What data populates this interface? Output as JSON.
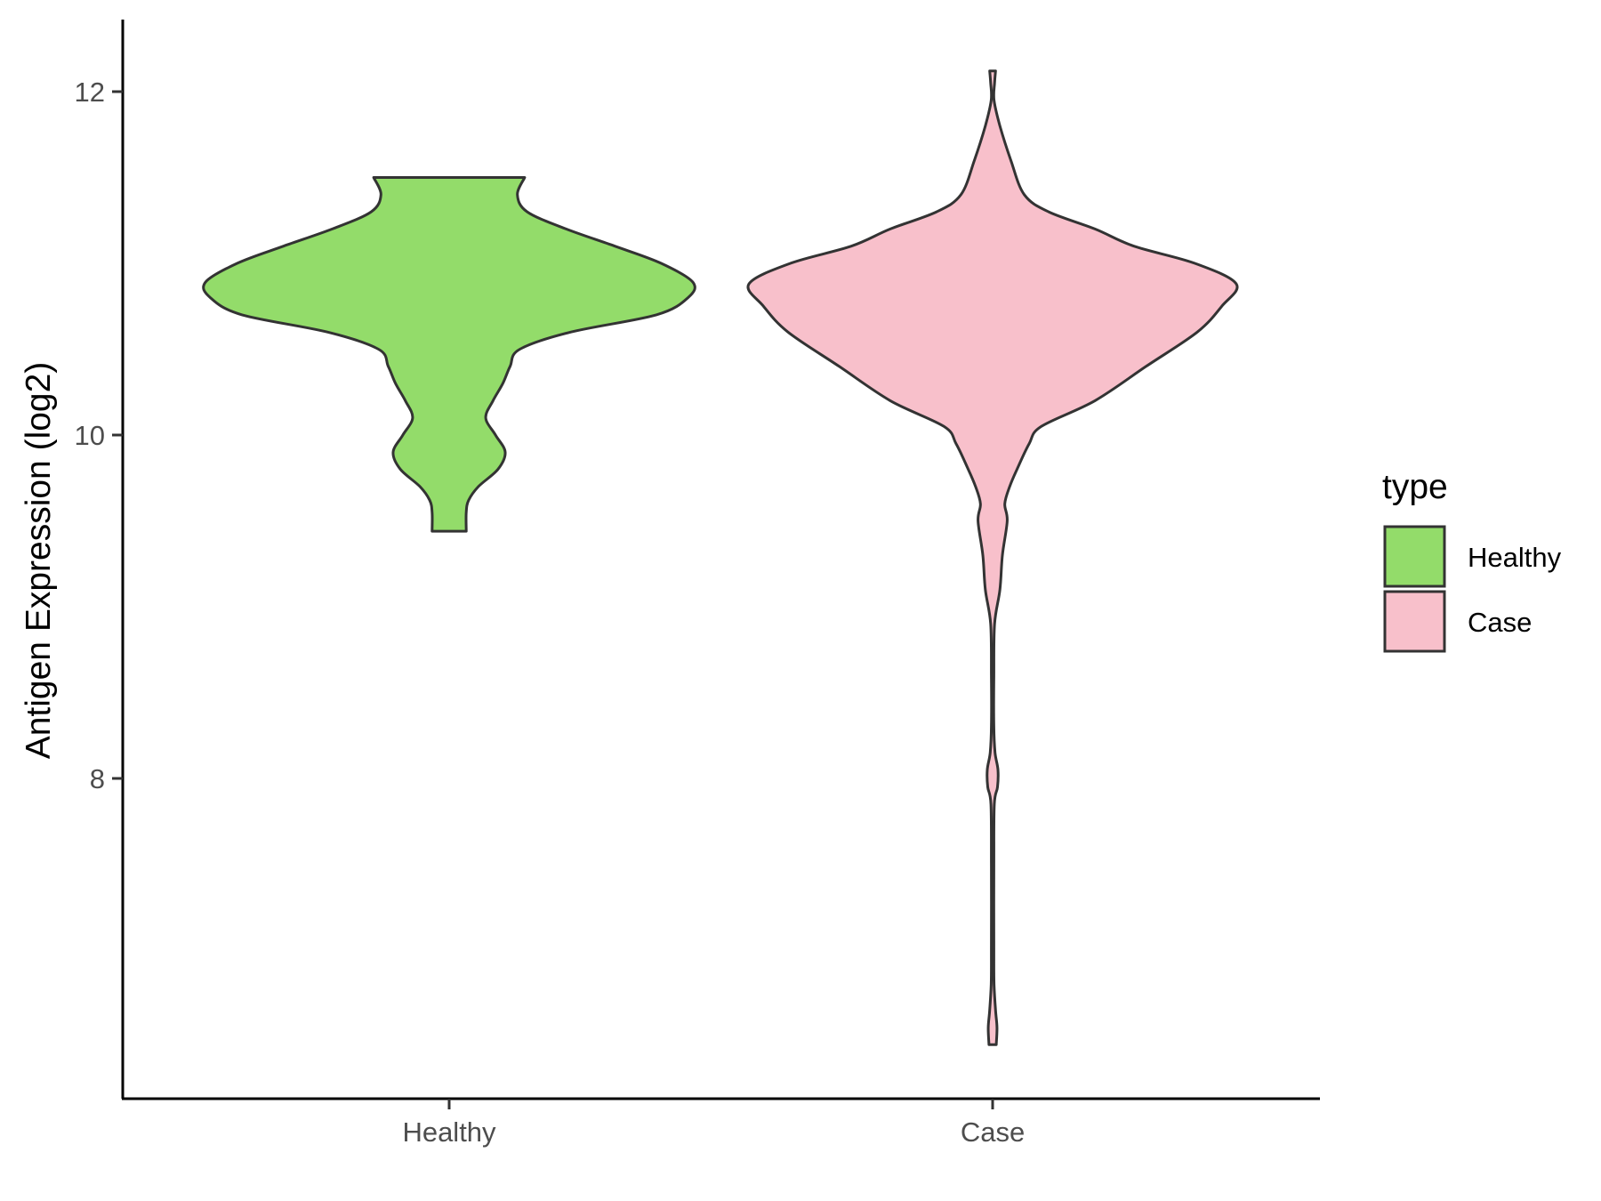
{
  "chart_data": {
    "type": "violin",
    "xlabel": "",
    "ylabel": "Antigen Expression (log2)",
    "categories": [
      "Healthy",
      "Case"
    ],
    "ylim": [
      6.1,
      12.4
    ],
    "yticks": [
      8,
      10,
      12
    ],
    "grid": false,
    "legend": {
      "title": "type",
      "position": "right",
      "entries": [
        {
          "label": "Healthy",
          "color": "#93dc6a"
        },
        {
          "label": "Case",
          "color": "#f8c0cb"
        }
      ]
    },
    "series": [
      {
        "name": "Healthy",
        "color": "#93dc6a",
        "y_min": 9.44,
        "y_max": 11.5,
        "profile": [
          [
            9.44,
            0.07
          ],
          [
            9.55,
            0.07
          ],
          [
            9.62,
            0.08
          ],
          [
            9.7,
            0.12
          ],
          [
            9.8,
            0.2
          ],
          [
            9.9,
            0.23
          ],
          [
            10.0,
            0.19
          ],
          [
            10.1,
            0.15
          ],
          [
            10.2,
            0.18
          ],
          [
            10.3,
            0.22
          ],
          [
            10.4,
            0.25
          ],
          [
            10.5,
            0.29
          ],
          [
            10.6,
            0.5
          ],
          [
            10.7,
            0.85
          ],
          [
            10.8,
            0.98
          ],
          [
            10.89,
            1.0
          ],
          [
            11.0,
            0.87
          ],
          [
            11.1,
            0.68
          ],
          [
            11.2,
            0.48
          ],
          [
            11.3,
            0.32
          ],
          [
            11.4,
            0.28
          ],
          [
            11.5,
            0.31
          ]
        ]
      },
      {
        "name": "Case",
        "color": "#f8c0cb",
        "y_min": 6.45,
        "y_max": 12.12,
        "profile": [
          [
            6.45,
            0.015
          ],
          [
            6.55,
            0.018
          ],
          [
            6.65,
            0.012
          ],
          [
            6.8,
            0.006
          ],
          [
            7.0,
            0.005
          ],
          [
            7.5,
            0.005
          ],
          [
            7.85,
            0.007
          ],
          [
            7.95,
            0.02
          ],
          [
            8.05,
            0.022
          ],
          [
            8.15,
            0.01
          ],
          [
            8.3,
            0.005
          ],
          [
            8.6,
            0.005
          ],
          [
            8.9,
            0.008
          ],
          [
            9.1,
            0.03
          ],
          [
            9.3,
            0.04
          ],
          [
            9.5,
            0.06
          ],
          [
            9.6,
            0.05
          ],
          [
            9.7,
            0.07
          ],
          [
            9.8,
            0.1
          ],
          [
            9.95,
            0.15
          ],
          [
            10.05,
            0.2
          ],
          [
            10.2,
            0.42
          ],
          [
            10.4,
            0.63
          ],
          [
            10.6,
            0.84
          ],
          [
            10.75,
            0.94
          ],
          [
            10.88,
            1.0
          ],
          [
            11.0,
            0.83
          ],
          [
            11.1,
            0.58
          ],
          [
            11.2,
            0.42
          ],
          [
            11.3,
            0.23
          ],
          [
            11.4,
            0.13
          ],
          [
            11.6,
            0.075
          ],
          [
            11.8,
            0.03
          ],
          [
            11.95,
            0.006
          ],
          [
            12.05,
            0.008
          ],
          [
            12.12,
            0.012
          ]
        ]
      }
    ]
  }
}
